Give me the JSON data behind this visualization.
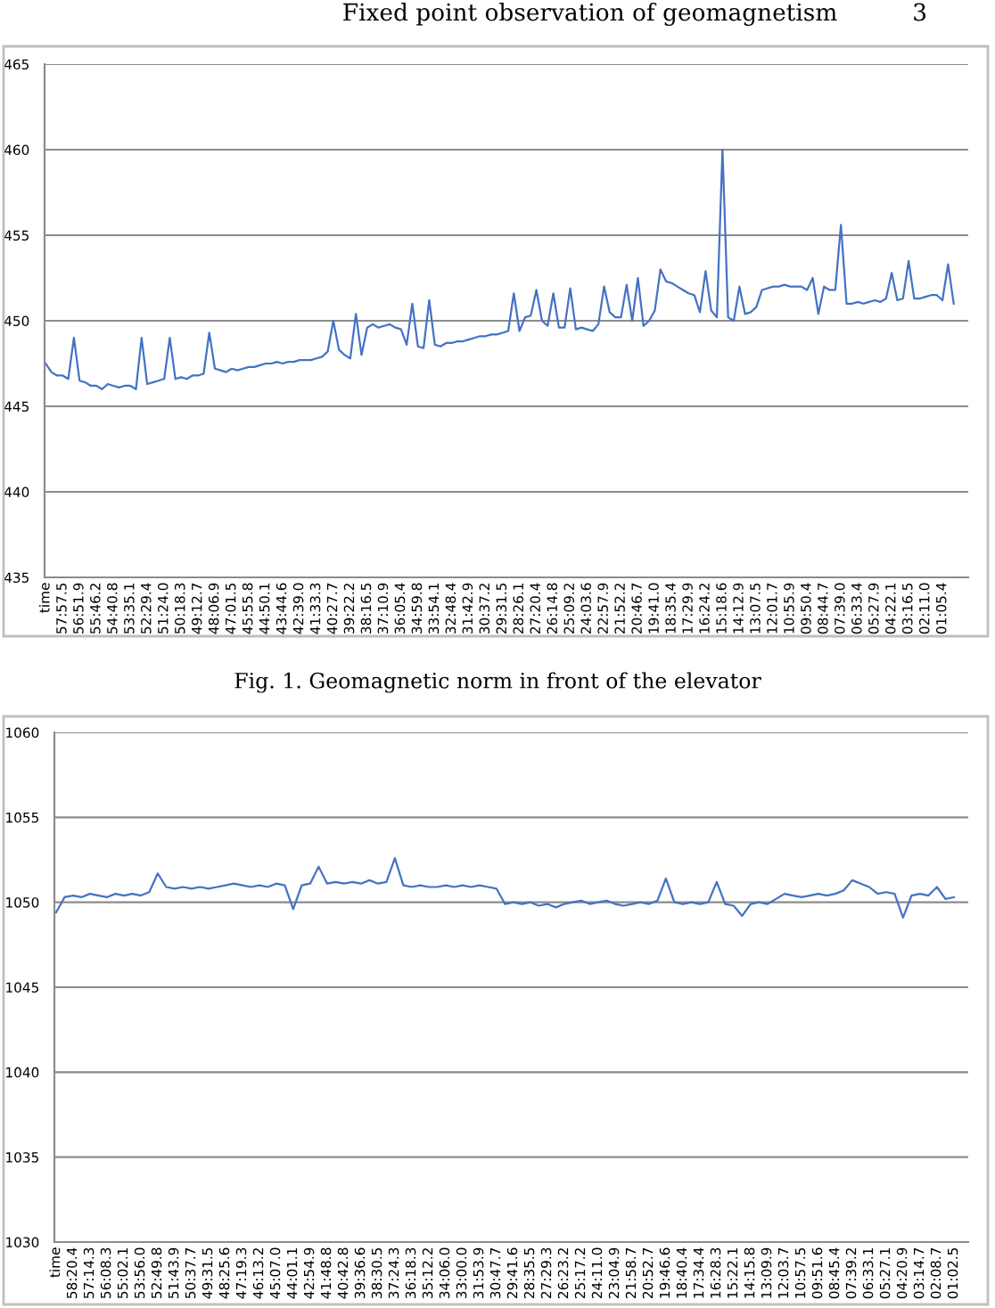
{
  "chart_data": [
    {
      "type": "line",
      "annotations": [
        "Fixed point observation of geomagnetism          3",
        "Fig. 1. Geomagnetic norm in front of the elevator"
      ],
      "categories": [
        "time",
        null,
        null,
        "57:57.5",
        null,
        null,
        "56:51.9",
        null,
        null,
        "55:46.2",
        null,
        null,
        "54:40.8",
        null,
        null,
        "53:35.1",
        null,
        null,
        "52:29.4",
        null,
        null,
        "51:24.0",
        null,
        null,
        "50:18.3",
        null,
        null,
        "49:12.7",
        null,
        null,
        "48:06.9",
        null,
        null,
        "47:01.5",
        null,
        null,
        "45:55.8",
        null,
        null,
        "44:50.1",
        null,
        null,
        "43:44.6",
        null,
        null,
        "42:39.0",
        null,
        null,
        "41:33.3",
        null,
        null,
        "40:27.7",
        null,
        null,
        "39:22.2",
        null,
        null,
        "38:16.5",
        null,
        null,
        "37:10.9",
        null,
        null,
        "36:05.4",
        null,
        null,
        "34:59.8",
        null,
        null,
        "33:54.1",
        null,
        null,
        "32:48.4",
        null,
        null,
        "31:42.9",
        null,
        null,
        "30:37.2",
        null,
        null,
        "29:31.5",
        null,
        null,
        "28:26.1",
        null,
        null,
        "27:20.4",
        null,
        null,
        "26:14.8",
        null,
        null,
        "25:09.2",
        null,
        null,
        "24:03.6",
        null,
        null,
        "22:57.9",
        null,
        null,
        "21:52.2",
        null,
        null,
        "20:46.7",
        null,
        null,
        "19:41.0",
        null,
        null,
        "18:35.4",
        null,
        null,
        "17:29.9",
        null,
        null,
        "16:24.2",
        null,
        null,
        "15:18.6",
        null,
        null,
        "14:12.9",
        null,
        null,
        "13:07.5",
        null,
        null,
        "12:01.7",
        null,
        null,
        "10:55.9",
        null,
        null,
        "09:50.4",
        null,
        null,
        "08:44.7",
        null,
        null,
        "07:39.0",
        null,
        null,
        "06:33.4",
        null,
        null,
        "05:27.9",
        null,
        null,
        "04:22.1",
        null,
        null,
        "03:16.5",
        null,
        null,
        "02:11.0",
        null,
        null,
        "01:05.4",
        null,
        null
      ],
      "series": [
        {
          "color": "#4472c4",
          "values": [
            447.5,
            447.0,
            446.8,
            446.8,
            446.6,
            449.0,
            446.5,
            446.4,
            446.2,
            446.2,
            446.0,
            446.3,
            446.2,
            446.1,
            446.2,
            446.2,
            446.0,
            449.0,
            446.3,
            446.4,
            446.5,
            446.6,
            449.0,
            446.6,
            446.7,
            446.6,
            446.8,
            446.8,
            446.9,
            449.3,
            447.2,
            447.1,
            447.0,
            447.2,
            447.1,
            447.2,
            447.3,
            447.3,
            447.4,
            447.5,
            447.5,
            447.6,
            447.5,
            447.6,
            447.6,
            447.7,
            447.7,
            447.7,
            447.8,
            447.9,
            448.2,
            450.0,
            448.3,
            448.0,
            447.8,
            450.4,
            448.0,
            449.6,
            449.8,
            449.6,
            449.7,
            449.8,
            449.6,
            449.5,
            448.6,
            451.0,
            448.5,
            448.4,
            451.2,
            448.6,
            448.5,
            448.7,
            448.7,
            448.8,
            448.8,
            448.9,
            449.0,
            449.1,
            449.1,
            449.2,
            449.2,
            449.3,
            449.4,
            451.6,
            449.4,
            450.2,
            450.3,
            451.8,
            450.0,
            449.7,
            451.6,
            449.6,
            449.6,
            451.9,
            449.5,
            449.6,
            449.5,
            449.4,
            449.8,
            452.0,
            450.5,
            450.2,
            450.2,
            452.1,
            450.0,
            452.5,
            449.7,
            450.0,
            450.6,
            453.0,
            452.3,
            452.2,
            452.0,
            451.8,
            451.6,
            451.5,
            450.5,
            452.9,
            450.6,
            450.2,
            460.0,
            450.2,
            450.0,
            452.0,
            450.4,
            450.5,
            450.8,
            451.8,
            451.9,
            452.0,
            452.0,
            452.1,
            452.0,
            452.0,
            452.0,
            451.8,
            452.5,
            450.4,
            452.0,
            451.8,
            451.8,
            455.6,
            451.0,
            451.0,
            451.1,
            451.0,
            451.1,
            451.2,
            451.1,
            451.3,
            452.8,
            451.2,
            451.3,
            453.5,
            451.3,
            451.3,
            451.4,
            451.5,
            451.5,
            451.2,
            453.3,
            451.0
          ]
        }
      ],
      "ylim": [
        435,
        465
      ],
      "yticks": [
        435,
        440,
        445,
        450,
        455,
        460,
        465
      ],
      "grid": "y"
    },
    {
      "type": "line",
      "categories": [
        "time",
        null,
        "58:20.4",
        null,
        "57:14.3",
        null,
        "56:08.3",
        null,
        "55:02.1",
        null,
        "53:56.0",
        null,
        "52:49.8",
        null,
        "51:43.9",
        null,
        "50:37.7",
        null,
        "49:31.5",
        null,
        "48:25.6",
        null,
        "47:19.3",
        null,
        "46:13.2",
        null,
        "45:07.0",
        null,
        "44:01.1",
        null,
        "42:54.9",
        null,
        "41:48.8",
        null,
        "40:42.8",
        null,
        "39:36.6",
        null,
        "38:30.5",
        null,
        "37:24.3",
        null,
        "36:18.3",
        null,
        "35:12.2",
        null,
        "34:06.0",
        null,
        "33:00.0",
        null,
        "31:53.9",
        null,
        "30:47.7",
        null,
        "29:41.6",
        null,
        "28:35.5",
        null,
        "27:29.3",
        null,
        "26:23.2",
        null,
        "25:17.2",
        null,
        "24:11.0",
        null,
        "23:04.9",
        null,
        "21:58.7",
        null,
        "20:52.7",
        null,
        "19:46.6",
        null,
        "18:40.4",
        null,
        "17:34.4",
        null,
        "16:28.3",
        null,
        "15:22.1",
        null,
        "14:15.8",
        null,
        "13:09.9",
        null,
        "12:03.7",
        null,
        "10:57.5",
        null,
        "09:51.6",
        null,
        "08:45.4",
        null,
        "07:39.2",
        null,
        "06:33.1",
        null,
        "05:27.1",
        null,
        "04:20.9",
        null,
        "03:14.7",
        null,
        "02:08.7",
        null,
        "01:02.5"
      ],
      "series": [
        {
          "color": "#4472c4",
          "values": [
            1049.4,
            1050.3,
            1050.4,
            1050.3,
            1050.5,
            1050.4,
            1050.3,
            1050.5,
            1050.4,
            1050.5,
            1050.4,
            1050.6,
            1051.7,
            1050.9,
            1050.8,
            1050.9,
            1050.8,
            1050.9,
            1050.8,
            1050.9,
            1051.0,
            1051.1,
            1051.0,
            1050.9,
            1051.0,
            1050.9,
            1051.1,
            1051.0,
            1049.6,
            1051.0,
            1051.1,
            1052.1,
            1051.1,
            1051.2,
            1051.1,
            1051.2,
            1051.1,
            1051.3,
            1051.1,
            1051.2,
            1052.6,
            1051.0,
            1050.9,
            1051.0,
            1050.9,
            1050.9,
            1051.0,
            1050.9,
            1051.0,
            1050.9,
            1051.0,
            1050.9,
            1050.8,
            1049.9,
            1050.0,
            1049.9,
            1050.0,
            1049.8,
            1049.9,
            1049.7,
            1049.9,
            1050.0,
            1050.1,
            1049.9,
            1050.0,
            1050.1,
            1049.9,
            1049.8,
            1049.9,
            1050.0,
            1049.9,
            1050.1,
            1051.4,
            1050.0,
            1049.9,
            1050.0,
            1049.9,
            1050.0,
            1051.2,
            1049.9,
            1049.8,
            1049.2,
            1049.9,
            1050.0,
            1049.9,
            1050.2,
            1050.5,
            1050.4,
            1050.3,
            1050.4,
            1050.5,
            1050.4,
            1050.5,
            1050.7,
            1051.3,
            1051.1,
            1050.9,
            1050.5,
            1050.6,
            1050.5,
            1049.1,
            1050.4,
            1050.5,
            1050.4,
            1050.9,
            1050.2,
            1050.3
          ]
        }
      ],
      "ylim": [
        1030,
        1060
      ],
      "yticks": [
        1030,
        1035,
        1040,
        1045,
        1050,
        1055,
        1060
      ],
      "grid": "y"
    }
  ]
}
